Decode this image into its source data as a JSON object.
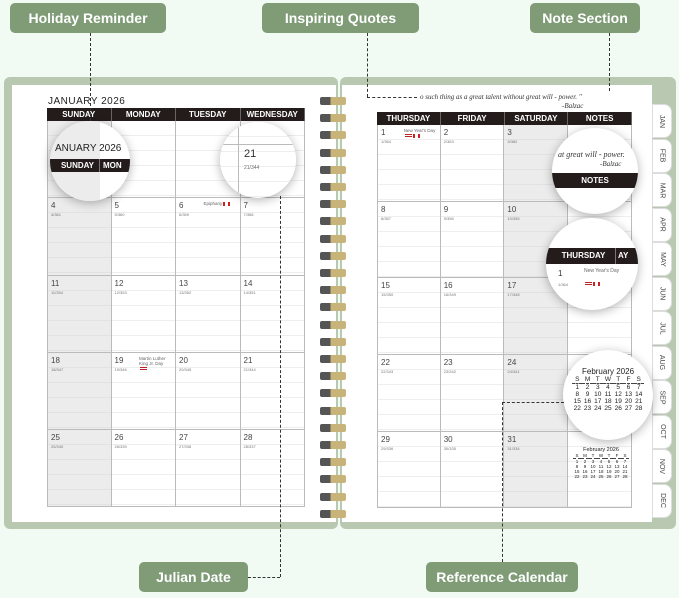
{
  "labels": {
    "holiday": "Holiday Reminder",
    "quotes": "Inspiring Quotes",
    "notes": "Note Section",
    "julian": "Julian Date",
    "reference": "Reference Calendar"
  },
  "colors": {
    "label": "#7f9c77",
    "background": "#f1faf3",
    "header": "#231c1a",
    "weekend_shade": "#ececec"
  },
  "left_page": {
    "month_title": "JANUARY 2026",
    "days": [
      "SUNDAY",
      "MONDAY",
      "TUESDAY",
      "WEDNESDAY"
    ],
    "weeks": [
      [
        null,
        null,
        null,
        null
      ],
      [
        {
          "d": "4",
          "j": "4/361"
        },
        {
          "d": "5",
          "j": "5/360"
        },
        {
          "d": "6",
          "j": "6/359",
          "h": "Epiphany",
          "flags": [
            "ca"
          ]
        },
        {
          "d": "7",
          "j": "7/358"
        }
      ],
      [
        {
          "d": "11",
          "j": "11/354"
        },
        {
          "d": "12",
          "j": "12/353"
        },
        {
          "d": "13",
          "j": "13/352"
        },
        {
          "d": "14",
          "j": "14/351"
        }
      ],
      [
        {
          "d": "18",
          "j": "18/347"
        },
        {
          "d": "19",
          "j": "19/346",
          "h": "Martin Luther King Jr. Day",
          "flags": [
            "us"
          ]
        },
        {
          "d": "20",
          "j": "20/345"
        },
        {
          "d": "21",
          "j": "21/344"
        }
      ],
      [
        {
          "d": "25",
          "j": "25/340"
        },
        {
          "d": "26",
          "j": "26/339"
        },
        {
          "d": "27",
          "j": "27/338"
        },
        {
          "d": "28",
          "j": "28/337"
        }
      ]
    ]
  },
  "right_page": {
    "quote_line1": "o such thing as a great talent without great will - power. \"",
    "quote_author": "-Balzac",
    "days": [
      "THURSDAY",
      "FRIDAY",
      "SATURDAY",
      "NOTES"
    ],
    "weeks": [
      [
        {
          "d": "1",
          "j": "1/364",
          "h": "New Year's Day",
          "flags": [
            "us",
            "ca"
          ]
        },
        {
          "d": "2",
          "j": "2/363"
        },
        {
          "d": "3",
          "j": "3/362"
        }
      ],
      [
        {
          "d": "8",
          "j": "8/357"
        },
        {
          "d": "9",
          "j": "9/356"
        },
        {
          "d": "10",
          "j": "10/355"
        }
      ],
      [
        {
          "d": "15",
          "j": "15/350"
        },
        {
          "d": "16",
          "j": "16/349"
        },
        {
          "d": "17",
          "j": "17/348"
        }
      ],
      [
        {
          "d": "22",
          "j": "22/343"
        },
        {
          "d": "23",
          "j": "23/342"
        },
        {
          "d": "24",
          "j": "24/341"
        }
      ],
      [
        {
          "d": "29",
          "j": "29/336"
        },
        {
          "d": "30",
          "j": "30/335"
        },
        {
          "d": "31",
          "j": "31/334"
        }
      ]
    ]
  },
  "mini_calendar": {
    "title": "February 2026",
    "weekdays": [
      "S",
      "M",
      "T",
      "W",
      "T",
      "F",
      "S"
    ],
    "rows": [
      [
        "1",
        "2",
        "3",
        "4",
        "5",
        "6",
        "7"
      ],
      [
        "8",
        "9",
        "10",
        "11",
        "12",
        "13",
        "14"
      ],
      [
        "15",
        "16",
        "17",
        "18",
        "19",
        "20",
        "21"
      ],
      [
        "22",
        "23",
        "24",
        "25",
        "26",
        "27",
        "28"
      ]
    ]
  },
  "magnifiers": {
    "holiday_title": "ANUARY 2026",
    "holiday_day1": "SUNDAY",
    "holiday_day2": "MON",
    "thursday": "THURSDAY",
    "thursday_date": "1",
    "thursday_julian": "1/364",
    "thursday_holiday": "New Year's Day",
    "quote_partial": "at great will - power.",
    "quote_author": "-Balzac",
    "friday_partial": "AY",
    "saturday_partial": "SATURDAY",
    "notes": "NOTES",
    "julian_date": "21",
    "julian_value": "21/344"
  },
  "tabs": [
    "JAN",
    "FEB",
    "MAR",
    "APR",
    "MAY",
    "JUN",
    "JUL",
    "AUG",
    "SEP",
    "OCT",
    "NOV",
    "DEC"
  ]
}
